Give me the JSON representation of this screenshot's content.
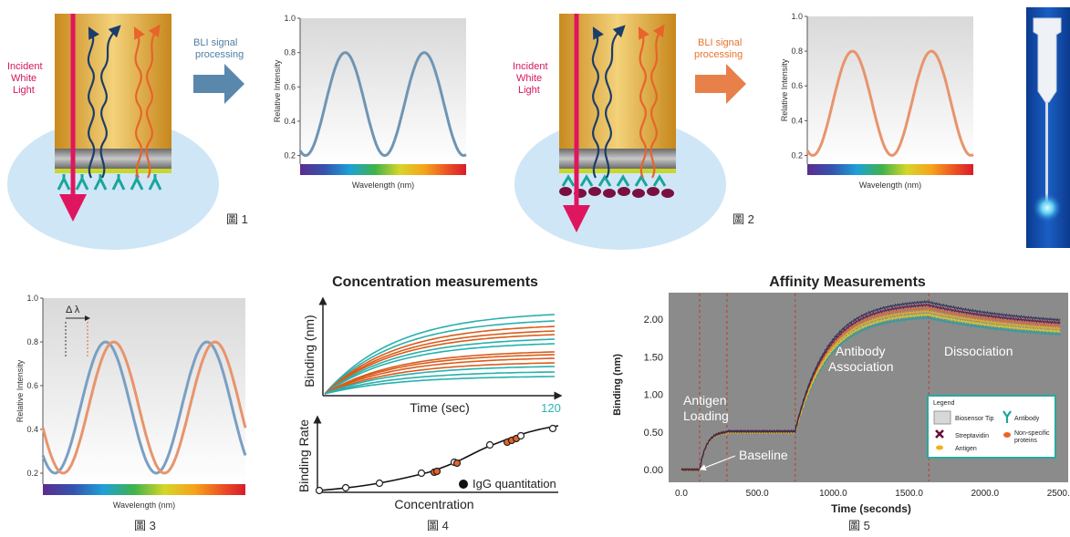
{
  "figures": {
    "fig1": {
      "incident_light": "Incident\nWhite\nLight",
      "bli_signal": "BLI signal\nprocessing",
      "caption": "圖 1"
    },
    "fig2": {
      "incident_light": "Incident\nWhite\nLight",
      "bli_signal": "BLI signal\nprocessing",
      "caption": "圖 2"
    },
    "fig3": {
      "caption": "圖 3",
      "delta_label": "Δ λ"
    },
    "fig4": {
      "title": "Concentration measurements",
      "top_ylabel": "Binding (nm)",
      "top_xlabel": "Time (sec)",
      "top_xend": "120",
      "bottom_ylabel": "Binding Rate",
      "bottom_xlabel": "Concentration",
      "legend": "IgG quantitation",
      "caption": "圖 4"
    },
    "fig5": {
      "title": "Affinity Measurements",
      "ylabel": "Binding (nm)",
      "xlabel": "Time (seconds)",
      "annotations": {
        "antigen_loading": "Antigen\nLoading",
        "baseline": "Baseline",
        "antibody_association": "Antibody\nAssociation",
        "dissociation": "Dissociation"
      },
      "legend": {
        "title": "Legend",
        "items": [
          "Biosensor Tip",
          "Antibody",
          "Streptavidin",
          "Non-specific\nproteins",
          "Antigen"
        ]
      },
      "caption": "圖 5"
    }
  },
  "spectrum_axis": {
    "yticks": [
      "1.0",
      "0.8",
      "0.6",
      "0.4",
      "0.2"
    ],
    "ylabel": "Relative Intensity",
    "xlabel": "Wavelength (nm)"
  },
  "chart_data": [
    {
      "type": "line",
      "title": "",
      "xlabel": "Wavelength (nm)",
      "ylabel": "Relative Intensity",
      "ylim": [
        0.15,
        1.0
      ],
      "series": [
        {
          "color": "#6f95b4",
          "peaks_y": [
            0.8,
            0.8
          ],
          "troughs_y": [
            0.2,
            0.2
          ]
        }
      ]
    },
    {
      "type": "line",
      "title": "",
      "xlabel": "Wavelength (nm)",
      "ylabel": "Relative Intensity",
      "ylim": [
        0.15,
        1.0
      ],
      "series": [
        {
          "color": "#e8946c",
          "peaks_y": [
            0.8,
            0.8
          ],
          "troughs_y": [
            0.2,
            0.2
          ]
        }
      ]
    },
    {
      "type": "line",
      "title": "",
      "xlabel": "Wavelength (nm)",
      "ylabel": "Relative Intensity",
      "ylim": [
        0.15,
        1.0
      ],
      "series": [
        {
          "color": "#7a9fc2",
          "peaks_y": [
            0.78,
            0.78
          ]
        },
        {
          "color": "#e8946c",
          "peaks_y": [
            0.79,
            0.79
          ]
        }
      ]
    },
    {
      "type": "line",
      "title": "Concentration measurements",
      "xlabel": "Time (sec)",
      "ylabel": "Binding (nm)",
      "xlim": [
        0,
        120
      ],
      "series_count": 14
    },
    {
      "type": "scatter",
      "xlabel": "Concentration",
      "ylabel": "Binding Rate",
      "series": [
        {
          "name": "IgG quantitation"
        }
      ]
    },
    {
      "type": "line",
      "title": "Affinity Measurements",
      "xlabel": "Time (seconds)",
      "ylabel": "Binding (nm)",
      "xticks": [
        "0.0",
        "500.0",
        "1000.0",
        "1500.0",
        "2000.0",
        "2500.0"
      ],
      "yticks": [
        "0.00",
        "0.50",
        "1.00",
        "1.50",
        "2.00"
      ],
      "xlim": [
        0,
        2500
      ],
      "ylim": [
        -0.15,
        2.35
      ],
      "phase_boundaries": [
        120,
        300,
        750,
        1630
      ],
      "points": [
        [
          0,
          0
        ],
        [
          120,
          0
        ],
        [
          180,
          0.35
        ],
        [
          300,
          0.5
        ],
        [
          750,
          0.5
        ],
        [
          800,
          1.25
        ],
        [
          1000,
          1.75
        ],
        [
          1300,
          2.0
        ],
        [
          1630,
          2.15
        ],
        [
          2000,
          2.0
        ],
        [
          2500,
          1.88
        ]
      ]
    }
  ]
}
